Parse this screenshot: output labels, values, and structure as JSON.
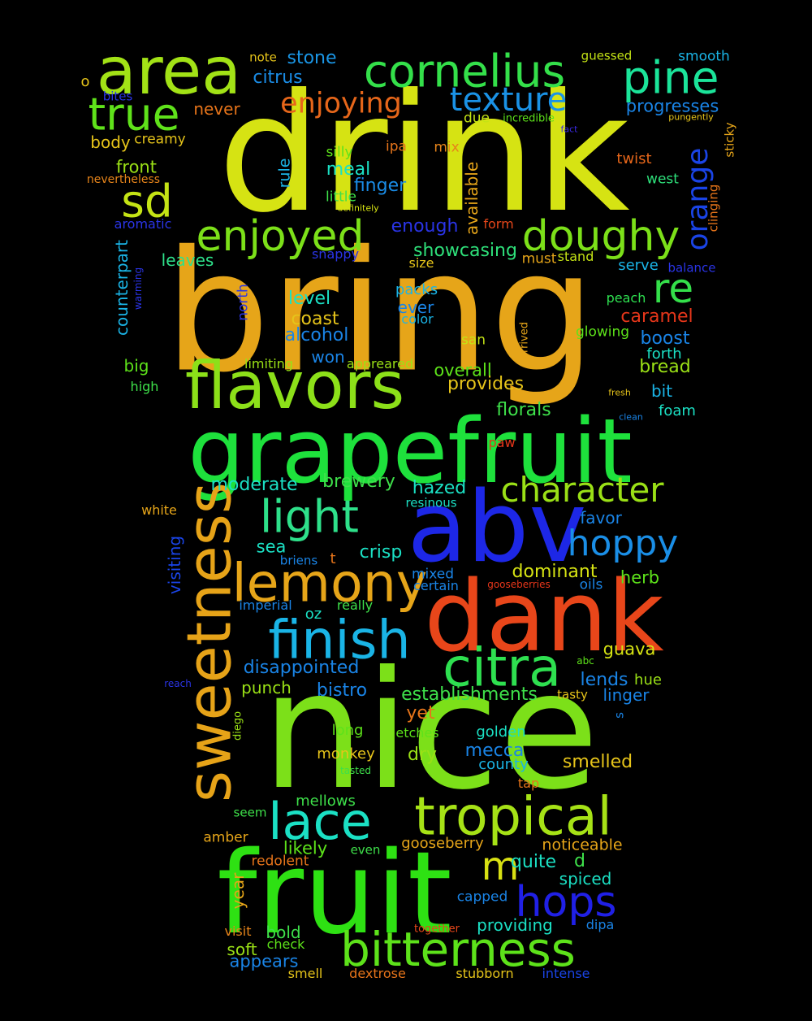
{
  "words": [
    {
      "text": "drink",
      "color": "#d6e313"
    },
    {
      "text": "bring",
      "color": "#e6a519"
    },
    {
      "text": "nice",
      "color": "#7ce019"
    },
    {
      "text": "grapefruit",
      "color": "#1ee13c"
    },
    {
      "text": "fruit",
      "color": "#2ee113"
    },
    {
      "text": "dank",
      "color": "#e8461a"
    },
    {
      "text": "abv",
      "color": "#1d27e6"
    },
    {
      "text": "flavors",
      "color": "#8ce019"
    },
    {
      "text": "area",
      "color": "#a2e216"
    },
    {
      "text": "sweetness",
      "color": "#e6a318"
    },
    {
      "text": "lemony",
      "color": "#e6a519"
    },
    {
      "text": "finish",
      "color": "#1ab4e6"
    },
    {
      "text": "citra",
      "color": "#2ee050"
    },
    {
      "text": "tropical",
      "color": "#a6e216"
    },
    {
      "text": "bitterness",
      "color": "#5de21a"
    },
    {
      "text": "cornelius",
      "color": "#34e04a"
    },
    {
      "text": "pine",
      "color": "#1be49a"
    },
    {
      "text": "true",
      "color": "#5fe21a"
    },
    {
      "text": "sd",
      "color": "#c4e315"
    },
    {
      "text": "enjoyed",
      "color": "#7ce019"
    },
    {
      "text": "doughy",
      "color": "#7ce019"
    },
    {
      "text": "light",
      "color": "#2ee08a"
    },
    {
      "text": "lace",
      "color": "#1be0c4"
    },
    {
      "text": "character",
      "color": "#9ae016"
    },
    {
      "text": "hoppy",
      "color": "#1a8ee6"
    },
    {
      "text": "hops",
      "color": "#2020e6"
    },
    {
      "text": "re",
      "color": "#34e04a"
    },
    {
      "text": "texture",
      "color": "#1a92e6"
    },
    {
      "text": "enjoying",
      "color": "#e6661a"
    },
    {
      "text": "orange",
      "color": "#1a44e6"
    },
    {
      "text": "m",
      "color": "#d8e013"
    },
    {
      "text": "stone",
      "color": "#1a96e6"
    },
    {
      "text": "citrus",
      "color": "#1a8ce6"
    },
    {
      "text": "note",
      "color": "#e6c41a"
    },
    {
      "text": "guessed",
      "color": "#c4e315"
    },
    {
      "text": "smooth",
      "color": "#1ab4e6"
    },
    {
      "text": "o",
      "color": "#e6c41a"
    },
    {
      "text": "bites",
      "color": "#2a34e6"
    },
    {
      "text": "never",
      "color": "#e6741a"
    },
    {
      "text": "progresses",
      "color": "#1a84e6"
    },
    {
      "text": "due",
      "color": "#c4e315"
    },
    {
      "text": "incredible",
      "color": "#5de21a"
    },
    {
      "text": "pungently",
      "color": "#e6c41a"
    },
    {
      "text": "fact",
      "color": "#3a2ae6"
    },
    {
      "text": "sticky",
      "color": "#e6a519"
    },
    {
      "text": "body",
      "color": "#e6c41a"
    },
    {
      "text": "creamy",
      "color": "#e6c41a"
    },
    {
      "text": "ipa",
      "color": "#e6741a"
    },
    {
      "text": "mix",
      "color": "#e6841a"
    },
    {
      "text": "silly",
      "color": "#5de21a"
    },
    {
      "text": "twist",
      "color": "#e6661a"
    },
    {
      "text": "front",
      "color": "#9ae016"
    },
    {
      "text": "rule",
      "color": "#1ab4e6"
    },
    {
      "text": "meal",
      "color": "#1be0c4"
    },
    {
      "text": "west",
      "color": "#2ee07a"
    },
    {
      "text": "nevertheless",
      "color": "#e6841a"
    },
    {
      "text": "finger",
      "color": "#1a8ce6"
    },
    {
      "text": "little",
      "color": "#3ee04a"
    },
    {
      "text": "definitely",
      "color": "#d6e313"
    },
    {
      "text": "available",
      "color": "#e6a519"
    },
    {
      "text": "clinging",
      "color": "#e6741a"
    },
    {
      "text": "aromatic",
      "color": "#2a34e6"
    },
    {
      "text": "enough",
      "color": "#2a34e6"
    },
    {
      "text": "form",
      "color": "#e6461a"
    },
    {
      "text": "counterpart",
      "color": "#1ab4e6"
    },
    {
      "text": "warming",
      "color": "#2a34e6"
    },
    {
      "text": "leaves",
      "color": "#2ee08a"
    },
    {
      "text": "snappy",
      "color": "#2a34e6"
    },
    {
      "text": "showcasing",
      "color": "#2ee07a"
    },
    {
      "text": "must",
      "color": "#e6a519"
    },
    {
      "text": "stand",
      "color": "#c4e315"
    },
    {
      "text": "serve",
      "color": "#1ab4e6"
    },
    {
      "text": "balance",
      "color": "#2a34e6"
    },
    {
      "text": "size",
      "color": "#e6c41a"
    },
    {
      "text": "north",
      "color": "#2a34e6"
    },
    {
      "text": "packs",
      "color": "#1ab4e6"
    },
    {
      "text": "level",
      "color": "#1be0c4"
    },
    {
      "text": "peach",
      "color": "#2ee050"
    },
    {
      "text": "caramel",
      "color": "#e6361a"
    },
    {
      "text": "coast",
      "color": "#e6c41a"
    },
    {
      "text": "ever",
      "color": "#1a84e6"
    },
    {
      "text": "color",
      "color": "#1ab4e6"
    },
    {
      "text": "alcohol",
      "color": "#1a84e6"
    },
    {
      "text": "arrived",
      "color": "#e6a519"
    },
    {
      "text": "glowing",
      "color": "#5de21a"
    },
    {
      "text": "boost",
      "color": "#1a84e6"
    },
    {
      "text": "san",
      "color": "#c4e315"
    },
    {
      "text": "won",
      "color": "#1a84e6"
    },
    {
      "text": "forth",
      "color": "#1be0c4"
    },
    {
      "text": "big",
      "color": "#5de21a"
    },
    {
      "text": "limiting",
      "color": "#9ae016"
    },
    {
      "text": "appreared",
      "color": "#9ae016"
    },
    {
      "text": "overall",
      "color": "#5de21a"
    },
    {
      "text": "bread",
      "color": "#9ae016"
    },
    {
      "text": "high",
      "color": "#3ee04a"
    },
    {
      "text": "provides",
      "color": "#e6c41a"
    },
    {
      "text": "bit",
      "color": "#1ab4e6"
    },
    {
      "text": "fresh",
      "color": "#e6c41a"
    },
    {
      "text": "florals",
      "color": "#3ee04a"
    },
    {
      "text": "foam",
      "color": "#1be0c4"
    },
    {
      "text": "clean",
      "color": "#1a84e6"
    },
    {
      "text": "paw",
      "color": "#e6361a"
    },
    {
      "text": "moderate",
      "color": "#1be0c4"
    },
    {
      "text": "brewery",
      "color": "#3ee04a"
    },
    {
      "text": "white",
      "color": "#e6a519"
    },
    {
      "text": "hazed",
      "color": "#1be0c4"
    },
    {
      "text": "resinous",
      "color": "#1be0c4"
    },
    {
      "text": "favor",
      "color": "#1a84e6"
    },
    {
      "text": "visiting",
      "color": "#1a44e6"
    },
    {
      "text": "sea",
      "color": "#1be0c4"
    },
    {
      "text": "crisp",
      "color": "#1be0c4"
    },
    {
      "text": "briens",
      "color": "#1a84e6"
    },
    {
      "text": "t",
      "color": "#e6741a"
    },
    {
      "text": "dominant",
      "color": "#d6e313"
    },
    {
      "text": "mixed",
      "color": "#1a84e6"
    },
    {
      "text": "herb",
      "color": "#5de21a"
    },
    {
      "text": "certain",
      "color": "#1a84e6"
    },
    {
      "text": "gooseberries",
      "color": "#e6361a"
    },
    {
      "text": "oils",
      "color": "#1a84e6"
    },
    {
      "text": "imperial",
      "color": "#1a84e6"
    },
    {
      "text": "really",
      "color": "#3ee04a"
    },
    {
      "text": "oz",
      "color": "#1be0c4"
    },
    {
      "text": "guava",
      "color": "#d6e313"
    },
    {
      "text": "abc",
      "color": "#5de21a"
    },
    {
      "text": "disappointed",
      "color": "#1a84e6"
    },
    {
      "text": "lends",
      "color": "#1a84e6"
    },
    {
      "text": "reach",
      "color": "#2a34e6"
    },
    {
      "text": "hue",
      "color": "#9ae016"
    },
    {
      "text": "punch",
      "color": "#9ae016"
    },
    {
      "text": "bistro",
      "color": "#1a84e6"
    },
    {
      "text": "establishments",
      "color": "#3ee04a"
    },
    {
      "text": "tasty",
      "color": "#e6c41a"
    },
    {
      "text": "linger",
      "color": "#1a84e6"
    },
    {
      "text": "s",
      "color": "#1a84e6"
    },
    {
      "text": "yet",
      "color": "#e6741a"
    },
    {
      "text": "diego",
      "color": "#9ae016"
    },
    {
      "text": "long",
      "color": "#5de21a"
    },
    {
      "text": "golden",
      "color": "#1be0c4"
    },
    {
      "text": "etches",
      "color": "#5de21a"
    },
    {
      "text": "dry",
      "color": "#9ae016"
    },
    {
      "text": "mecca",
      "color": "#1a84e6"
    },
    {
      "text": "monkey",
      "color": "#e6c41a"
    },
    {
      "text": "smelled",
      "color": "#e6c41a"
    },
    {
      "text": "county",
      "color": "#1ab4e6"
    },
    {
      "text": "tasted",
      "color": "#3ee04a"
    },
    {
      "text": "tap",
      "color": "#e6741a"
    },
    {
      "text": "mellows",
      "color": "#3ee04a"
    },
    {
      "text": "seem",
      "color": "#3ee04a"
    },
    {
      "text": "amber",
      "color": "#e6a519"
    },
    {
      "text": "likely",
      "color": "#5de21a"
    },
    {
      "text": "noticeable",
      "color": "#e6a519"
    },
    {
      "text": "even",
      "color": "#3ee04a"
    },
    {
      "text": "gooseberry",
      "color": "#e6a519"
    },
    {
      "text": "quite",
      "color": "#1be0c4"
    },
    {
      "text": "d",
      "color": "#3ee04a"
    },
    {
      "text": "redolent",
      "color": "#e6741a"
    },
    {
      "text": "spiced",
      "color": "#1be0c4"
    },
    {
      "text": "year",
      "color": "#e6a519"
    },
    {
      "text": "capped",
      "color": "#1a84e6"
    },
    {
      "text": "bold",
      "color": "#3ee04a"
    },
    {
      "text": "visit",
      "color": "#e6841a"
    },
    {
      "text": "providing",
      "color": "#1be0c4"
    },
    {
      "text": "together",
      "color": "#e6461a"
    },
    {
      "text": "dipa",
      "color": "#1a84e6"
    },
    {
      "text": "soft",
      "color": "#9ae016"
    },
    {
      "text": "check",
      "color": "#5de21a"
    },
    {
      "text": "appears",
      "color": "#1a84e6"
    },
    {
      "text": "smell",
      "color": "#e6c41a"
    },
    {
      "text": "dextrose",
      "color": "#e6741a"
    },
    {
      "text": "stubborn",
      "color": "#e6c41a"
    },
    {
      "text": "intense",
      "color": "#1a44e6"
    }
  ]
}
